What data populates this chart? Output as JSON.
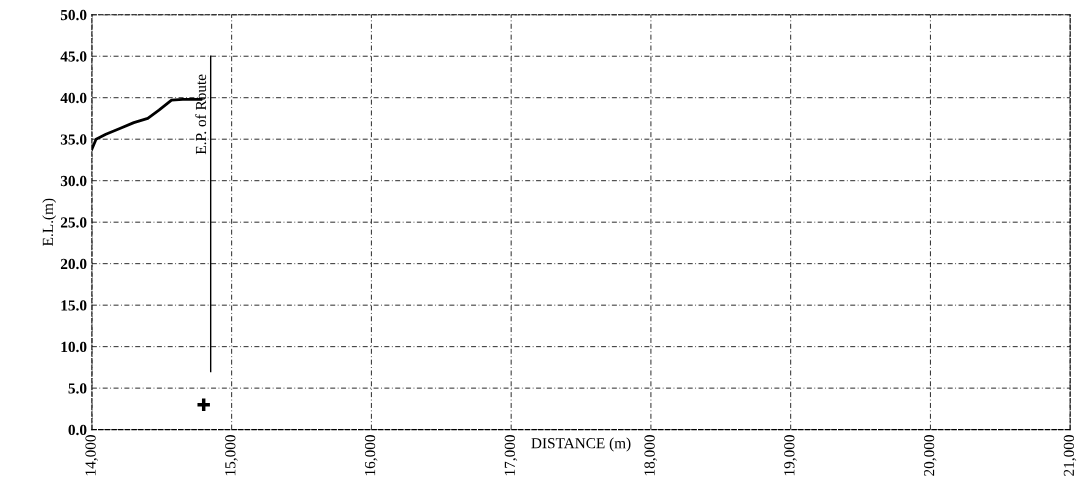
{
  "chart_data": {
    "type": "line",
    "xlabel": "DISTANCE (m)",
    "ylabel": "E.L.(m)",
    "xlim": [
      14000,
      21000
    ],
    "ylim": [
      0,
      50
    ],
    "xticks": [
      {
        "value": 14000,
        "label": "14,000"
      },
      {
        "value": 15000,
        "label": "15,000"
      },
      {
        "value": 16000,
        "label": "16,000"
      },
      {
        "value": 17000,
        "label": "17,000"
      },
      {
        "value": 18000,
        "label": "18,000"
      },
      {
        "value": 19000,
        "label": "19,000"
      },
      {
        "value": 20000,
        "label": "20,000"
      },
      {
        "value": 21000,
        "label": "21,000"
      }
    ],
    "yticks": [
      {
        "value": 0,
        "label": "0.0"
      },
      {
        "value": 5,
        "label": "5.0"
      },
      {
        "value": 10,
        "label": "10.0"
      },
      {
        "value": 15,
        "label": "15.0"
      },
      {
        "value": 20,
        "label": "20.0"
      },
      {
        "value": 25,
        "label": "25.0"
      },
      {
        "value": 30,
        "label": "30.0"
      },
      {
        "value": 35,
        "label": "35.0"
      },
      {
        "value": 40,
        "label": "40.0"
      },
      {
        "value": 45,
        "label": "45.0"
      },
      {
        "value": 50,
        "label": "50.0"
      }
    ],
    "grid": true,
    "line_style": "solid",
    "marker": "none",
    "series": [
      {
        "color": "#000000",
        "x": [
          14000,
          14030,
          14100,
          14200,
          14300,
          14400,
          14480,
          14570,
          14650,
          14780
        ],
        "values": [
          33.8,
          35.0,
          35.6,
          36.3,
          37.0,
          37.5,
          38.5,
          39.7,
          39.8,
          39.8
        ]
      },
      {
        "type": "scatter",
        "color": "#000000",
        "marker": "cross",
        "x": [
          14800
        ],
        "values": [
          3
        ]
      }
    ],
    "ref_lines": [
      {
        "axis": "x",
        "value": 14850,
        "label": "E.P. of Route",
        "color": "#000000"
      }
    ]
  }
}
